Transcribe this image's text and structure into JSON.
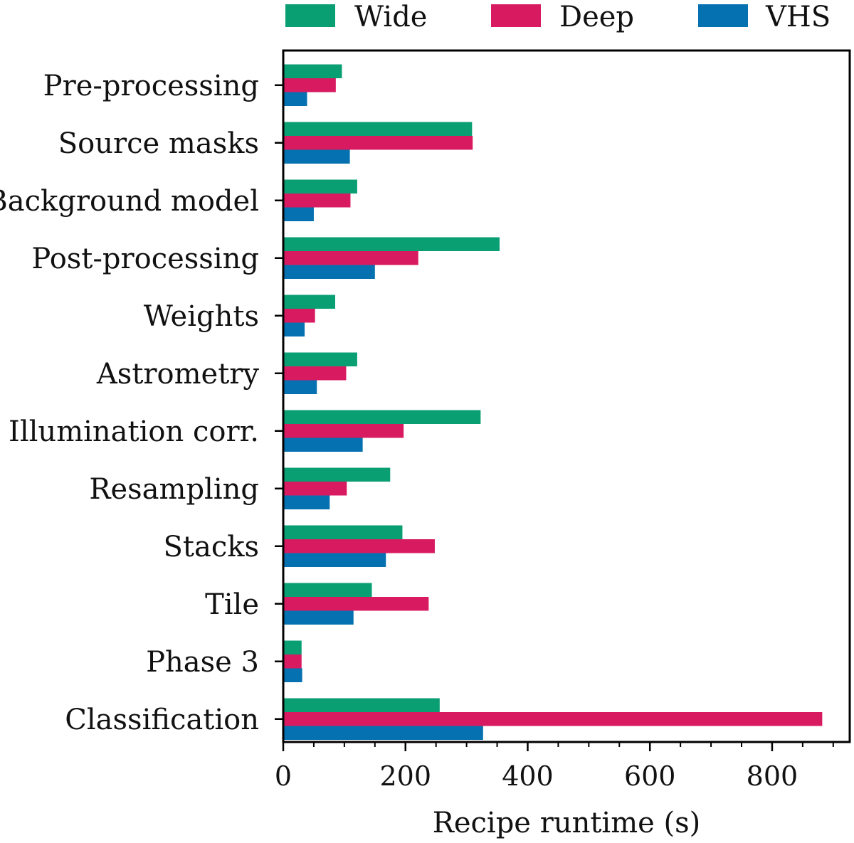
{
  "chart_data": {
    "type": "bar",
    "orientation": "horizontal",
    "categories": [
      "Pre-processing",
      "Source masks",
      "Background model",
      "Post-processing",
      "Weights",
      "Astrometry",
      "Illumination corr.",
      "Resampling",
      "Stacks",
      "Tile",
      "Phase 3",
      "Classification"
    ],
    "series": [
      {
        "name": "Wide",
        "color": "#0a9e73",
        "values": [
          96,
          309,
          121,
          354,
          85,
          121,
          323,
          175,
          195,
          145,
          30,
          256
        ]
      },
      {
        "name": "Deep",
        "color": "#d81b60",
        "values": [
          86,
          310,
          110,
          221,
          52,
          103,
          197,
          104,
          248,
          238,
          30,
          882
        ]
      },
      {
        "name": "VHS",
        "color": "#0571b0",
        "values": [
          39,
          109,
          50,
          150,
          35,
          55,
          130,
          76,
          168,
          115,
          31,
          327
        ]
      }
    ],
    "title": "",
    "xlabel": "Recipe runtime (s)",
    "ylabel": "",
    "xlim": [
      0,
      927
    ],
    "xticks": [
      0,
      200,
      400,
      600,
      800
    ],
    "xtick_labels": [
      "0",
      "200",
      "400",
      "600",
      "800"
    ],
    "x_minor_step": 50,
    "grid": false,
    "legend_position": "top, above plot"
  }
}
